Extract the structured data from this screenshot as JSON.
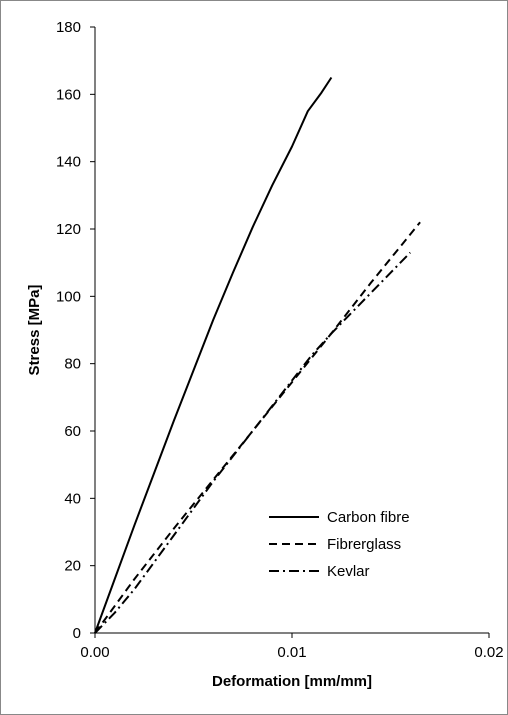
{
  "chart_data": {
    "type": "line",
    "title": "",
    "xlabel": "Deformation [mm/mm]",
    "ylabel": "Stress [MPa]",
    "xlim": [
      0,
      0.02
    ],
    "ylim": [
      0,
      180
    ],
    "x_ticks": [
      "0.00",
      "0.01",
      "0.02"
    ],
    "y_ticks": [
      "0",
      "20",
      "40",
      "60",
      "80",
      "100",
      "120",
      "140",
      "160",
      "180"
    ],
    "grid": false,
    "legend_position": "bottom-right",
    "series": [
      {
        "name": "Carbon fibre",
        "style": "solid",
        "color": "#000000",
        "x": [
          0,
          0.001,
          0.002,
          0.003,
          0.004,
          0.005,
          0.006,
          0.007,
          0.008,
          0.009,
          0.01,
          0.0108,
          0.0115,
          0.012
        ],
        "y": [
          0,
          16,
          32,
          47.5,
          63,
          78,
          93,
          107,
          120.5,
          133,
          144.5,
          155,
          160.5,
          165
        ]
      },
      {
        "name": "Fibrerglass",
        "style": "dashed",
        "color": "#000000",
        "x": [
          0,
          0.002,
          0.004,
          0.006,
          0.008,
          0.01,
          0.012,
          0.014,
          0.0165
        ],
        "y": [
          0,
          16,
          31,
          45.5,
          60,
          74.5,
          89,
          104,
          122
        ]
      },
      {
        "name": "Kevlar",
        "style": "dashdot",
        "color": "#000000",
        "x": [
          0,
          0.001,
          0.002,
          0.003,
          0.004,
          0.005,
          0.006,
          0.007,
          0.008,
          0.009,
          0.01,
          0.011,
          0.012,
          0.013,
          0.014,
          0.015,
          0.016
        ],
        "y": [
          0,
          6,
          13,
          21,
          29,
          37,
          45,
          52.5,
          60,
          67.5,
          75,
          82.5,
          89,
          95,
          101,
          107,
          113
        ]
      }
    ]
  }
}
